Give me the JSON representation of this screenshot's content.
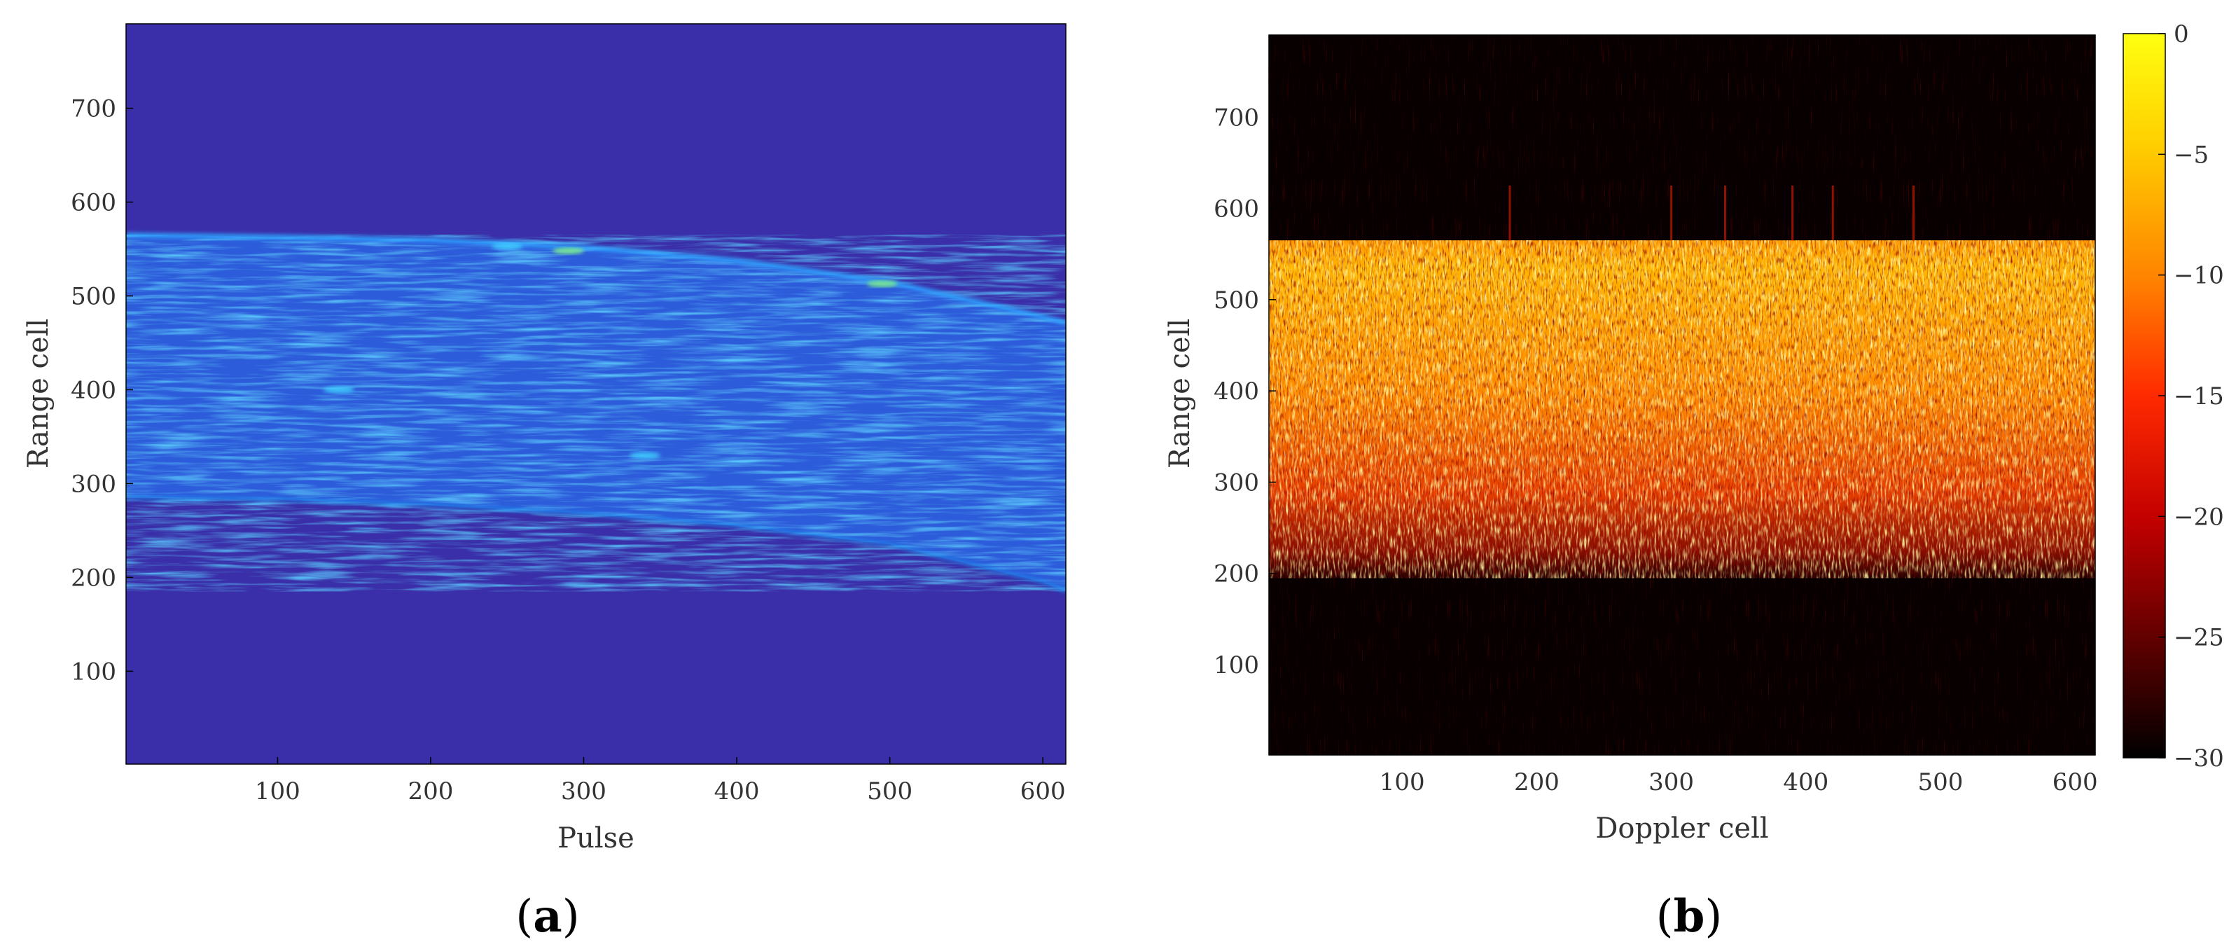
{
  "chart_data": [
    {
      "type": "heatmap",
      "panel_label": "a",
      "xlabel": "Pulse",
      "ylabel": "Range cell",
      "xlim": [
        1,
        615
      ],
      "ylim": [
        1,
        790
      ],
      "x_ticks": [
        100,
        200,
        300,
        400,
        500,
        600
      ],
      "y_ticks": [
        100,
        200,
        300,
        400,
        500,
        600,
        700
      ],
      "colormap": "parula",
      "background_color": "#3a2fa8",
      "signal_band": {
        "description_units": "range cell vs pulse",
        "top_edge": [
          [
            1,
            565
          ],
          [
            100,
            563
          ],
          [
            200,
            560
          ],
          [
            300,
            552
          ],
          [
            400,
            538
          ],
          [
            500,
            515
          ],
          [
            600,
            478
          ],
          [
            615,
            472
          ]
        ],
        "bottom_edge": [
          [
            1,
            285
          ],
          [
            100,
            283
          ],
          [
            200,
            277
          ],
          [
            300,
            268
          ],
          [
            400,
            255
          ],
          [
            500,
            235
          ],
          [
            600,
            195
          ],
          [
            615,
            185
          ]
        ]
      },
      "hotspots": [
        {
          "x": 290,
          "y": 548,
          "level": 0.9
        },
        {
          "x": 495,
          "y": 513,
          "level": 0.85
        },
        {
          "x": 140,
          "y": 400,
          "level": 0.7
        },
        {
          "x": 250,
          "y": 553,
          "level": 0.75
        },
        {
          "x": 340,
          "y": 330,
          "level": 0.6
        }
      ]
    },
    {
      "type": "heatmap",
      "panel_label": "b",
      "xlabel": "Doppler cell",
      "ylabel": "Range cell",
      "xlim": [
        1,
        615
      ],
      "ylim": [
        1,
        790
      ],
      "x_ticks": [
        100,
        200,
        300,
        400,
        500,
        600
      ],
      "y_ticks": [
        100,
        200,
        300,
        400,
        500,
        600,
        700
      ],
      "colormap": "hot",
      "colorbar": {
        "min": -30,
        "max": 0,
        "ticks": [
          0,
          -5,
          -10,
          -15,
          -20,
          -25,
          -30
        ],
        "tick_labels": [
          "0",
          "−5",
          "−10",
          "−15",
          "−20",
          "−25",
          "−30"
        ]
      },
      "signal_band": {
        "top": 565,
        "bottom": 195,
        "bright_core": [
          330,
          560
        ]
      },
      "spikes": [
        300,
        340,
        390,
        420,
        180,
        480
      ]
    }
  ]
}
